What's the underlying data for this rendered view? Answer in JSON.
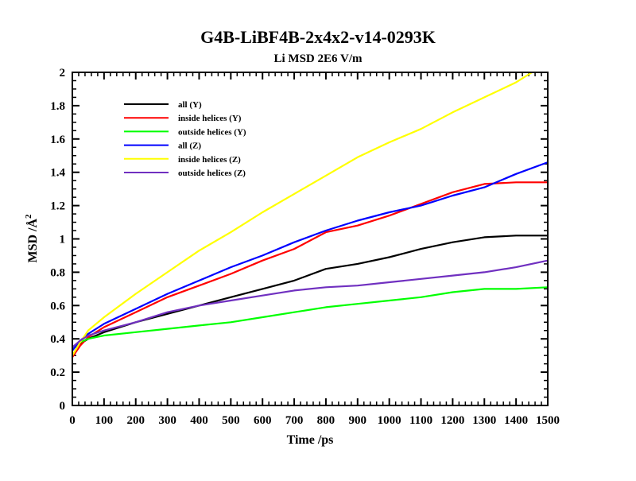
{
  "chart_data": {
    "type": "line",
    "title": "G4B-LiBF4B-2x4x2-v14-0293K",
    "subtitle": "Li MSD 2E6 V/m",
    "xlabel": "Time /ps",
    "ylabel": "MSD /Å",
    "ylabel_superscript": "2",
    "xlim": [
      0,
      1500
    ],
    "ylim": [
      0,
      2
    ],
    "xticks": [
      "0",
      "100",
      "200",
      "300",
      "400",
      "500",
      "600",
      "700",
      "800",
      "900",
      "1000",
      "1100",
      "1200",
      "1300",
      "1400",
      "1500"
    ],
    "yticks": [
      "0",
      "0.2",
      "0.4",
      "0.6",
      "0.8",
      "1",
      "1.2",
      "1.4",
      "1.6",
      "1.8",
      "2"
    ],
    "grid": false,
    "legend_position": "top-left",
    "series": [
      {
        "name": "all (Y)",
        "color": "#000000",
        "x": [
          0,
          25,
          50,
          100,
          200,
          300,
          400,
          500,
          600,
          700,
          800,
          900,
          1000,
          1100,
          1200,
          1300,
          1400,
          1500
        ],
        "values": [
          0.3,
          0.37,
          0.4,
          0.44,
          0.5,
          0.55,
          0.6,
          0.65,
          0.7,
          0.75,
          0.82,
          0.85,
          0.89,
          0.94,
          0.98,
          1.01,
          1.02,
          1.02
        ]
      },
      {
        "name": "inside helices (Y)",
        "color": "#ff0000",
        "x": [
          0,
          25,
          50,
          100,
          200,
          300,
          400,
          500,
          600,
          700,
          800,
          900,
          1000,
          1100,
          1200,
          1300,
          1400,
          1500
        ],
        "values": [
          0.29,
          0.36,
          0.41,
          0.47,
          0.56,
          0.65,
          0.72,
          0.79,
          0.87,
          0.94,
          1.04,
          1.08,
          1.14,
          1.21,
          1.28,
          1.33,
          1.34,
          1.34
        ]
      },
      {
        "name": "outside helices (Y)",
        "color": "#00ff00",
        "x": [
          0,
          25,
          50,
          100,
          200,
          300,
          400,
          500,
          600,
          700,
          800,
          900,
          1000,
          1100,
          1200,
          1300,
          1400,
          1500
        ],
        "values": [
          0.35,
          0.38,
          0.4,
          0.42,
          0.44,
          0.46,
          0.48,
          0.5,
          0.53,
          0.56,
          0.59,
          0.61,
          0.63,
          0.65,
          0.68,
          0.7,
          0.7,
          0.71
        ]
      },
      {
        "name": "all (Z)",
        "color": "#0000ff",
        "x": [
          0,
          25,
          50,
          100,
          200,
          300,
          400,
          500,
          600,
          700,
          800,
          900,
          1000,
          1100,
          1200,
          1300,
          1400,
          1500
        ],
        "values": [
          0.33,
          0.39,
          0.43,
          0.49,
          0.58,
          0.67,
          0.75,
          0.83,
          0.9,
          0.98,
          1.05,
          1.11,
          1.16,
          1.2,
          1.26,
          1.31,
          1.39,
          1.46
        ]
      },
      {
        "name": "inside helices (Z)",
        "color": "#ffff00",
        "x": [
          0,
          25,
          50,
          100,
          200,
          300,
          400,
          500,
          600,
          700,
          800,
          900,
          1000,
          1100,
          1200,
          1300,
          1400,
          1450
        ],
        "values": [
          0.3,
          0.38,
          0.45,
          0.53,
          0.67,
          0.8,
          0.93,
          1.04,
          1.16,
          1.27,
          1.38,
          1.49,
          1.58,
          1.66,
          1.76,
          1.85,
          1.94,
          2.0
        ]
      },
      {
        "name": "outside helices (Z)",
        "color": "#7030c0",
        "x": [
          0,
          25,
          50,
          100,
          200,
          300,
          400,
          500,
          600,
          700,
          800,
          900,
          1000,
          1100,
          1200,
          1300,
          1400,
          1500
        ],
        "values": [
          0.35,
          0.39,
          0.42,
          0.45,
          0.5,
          0.56,
          0.6,
          0.63,
          0.66,
          0.69,
          0.71,
          0.72,
          0.74,
          0.76,
          0.78,
          0.8,
          0.83,
          0.87
        ]
      }
    ]
  }
}
